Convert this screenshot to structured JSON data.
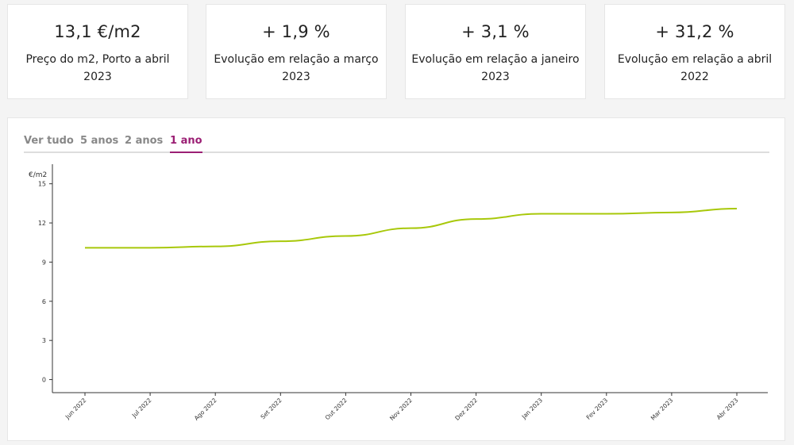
{
  "cards": [
    {
      "value": "13,1 €/m2",
      "label": "Preço do m2, Porto a abril 2023"
    },
    {
      "value": "+ 1,9 %",
      "label": "Evolução em relação a março 2023"
    },
    {
      "value": "+ 3,1 %",
      "label": "Evolução em relação a janeiro 2023"
    },
    {
      "value": "+ 31,2 %",
      "label": "Evolução em relação a abril 2022"
    }
  ],
  "tabs": [
    {
      "label": "Ver tudo",
      "active": false
    },
    {
      "label": "5 anos",
      "active": false
    },
    {
      "label": "2 anos",
      "active": false
    },
    {
      "label": "1 ano",
      "active": true
    }
  ],
  "colors": {
    "line": "#a8c80a",
    "accent": "#9b1f74"
  },
  "chart_data": {
    "type": "line",
    "title": "",
    "xlabel": "",
    "ylabel": "€/m2",
    "ylim": [
      -1,
      16.5
    ],
    "yticks": [
      0,
      3,
      6,
      9,
      12,
      15
    ],
    "grid": false,
    "categories": [
      "Jun 2022",
      "Jul 2022",
      "Ago 2022",
      "Set 2022",
      "Out 2022",
      "Nov 2022",
      "Dez 2022",
      "Jan 2023",
      "Fev 2023",
      "Mar 2023",
      "Abr 2023"
    ],
    "series": [
      {
        "name": "Preço do m2, Porto",
        "values": [
          10.1,
          10.1,
          10.2,
          10.6,
          11.0,
          11.6,
          12.3,
          12.7,
          12.7,
          12.8,
          13.1
        ]
      }
    ]
  }
}
